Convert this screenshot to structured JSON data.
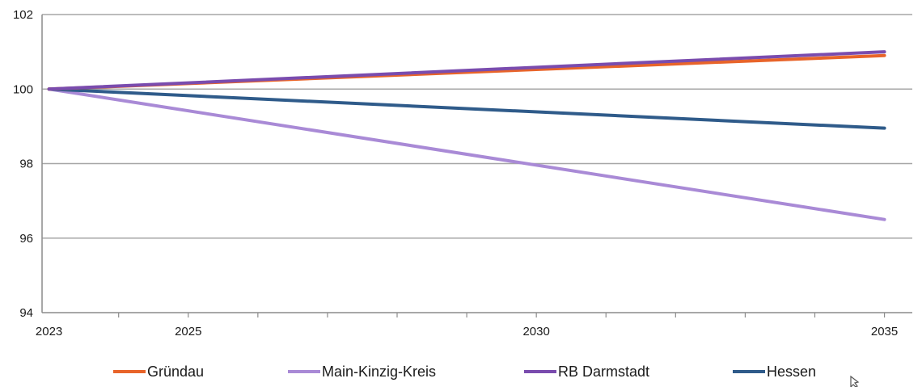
{
  "chart_data": {
    "type": "line",
    "title": "",
    "xlabel": "",
    "ylabel": "",
    "xlim": [
      2022.9,
      2035.4
    ],
    "ylim": [
      94,
      102
    ],
    "y_ticks": [
      94,
      96,
      98,
      100,
      102
    ],
    "x_ticks": [
      2023,
      2025,
      2030,
      2035
    ],
    "x_minor_ticks": [
      2024,
      2025,
      2026,
      2027,
      2028,
      2029,
      2030,
      2031,
      2032,
      2033,
      2034,
      2035
    ],
    "x_tick_labels": [
      "2023",
      "2025",
      "2030",
      "2035"
    ],
    "y_tick_labels": [
      "94",
      "96",
      "98",
      "100",
      "102"
    ],
    "grid": "horizontal",
    "legend_position": "bottom",
    "series": [
      {
        "name": "Gründau",
        "color": "#e8642a",
        "x": [
          2023,
          2035
        ],
        "y": [
          100,
          100.9
        ]
      },
      {
        "name": "Main-Kinzig-Kreis",
        "color": "#a98ad6",
        "x": [
          2023,
          2035
        ],
        "y": [
          100,
          96.5
        ]
      },
      {
        "name": "RB Darmstadt",
        "color": "#7a4cae",
        "x": [
          2023,
          2035
        ],
        "y": [
          100,
          101
        ]
      },
      {
        "name": "Hessen",
        "color": "#2f5b8a",
        "x": [
          2023,
          2035
        ],
        "y": [
          100,
          98.95
        ]
      }
    ]
  },
  "cursor": {
    "icon": "mouse-pointer-icon"
  }
}
